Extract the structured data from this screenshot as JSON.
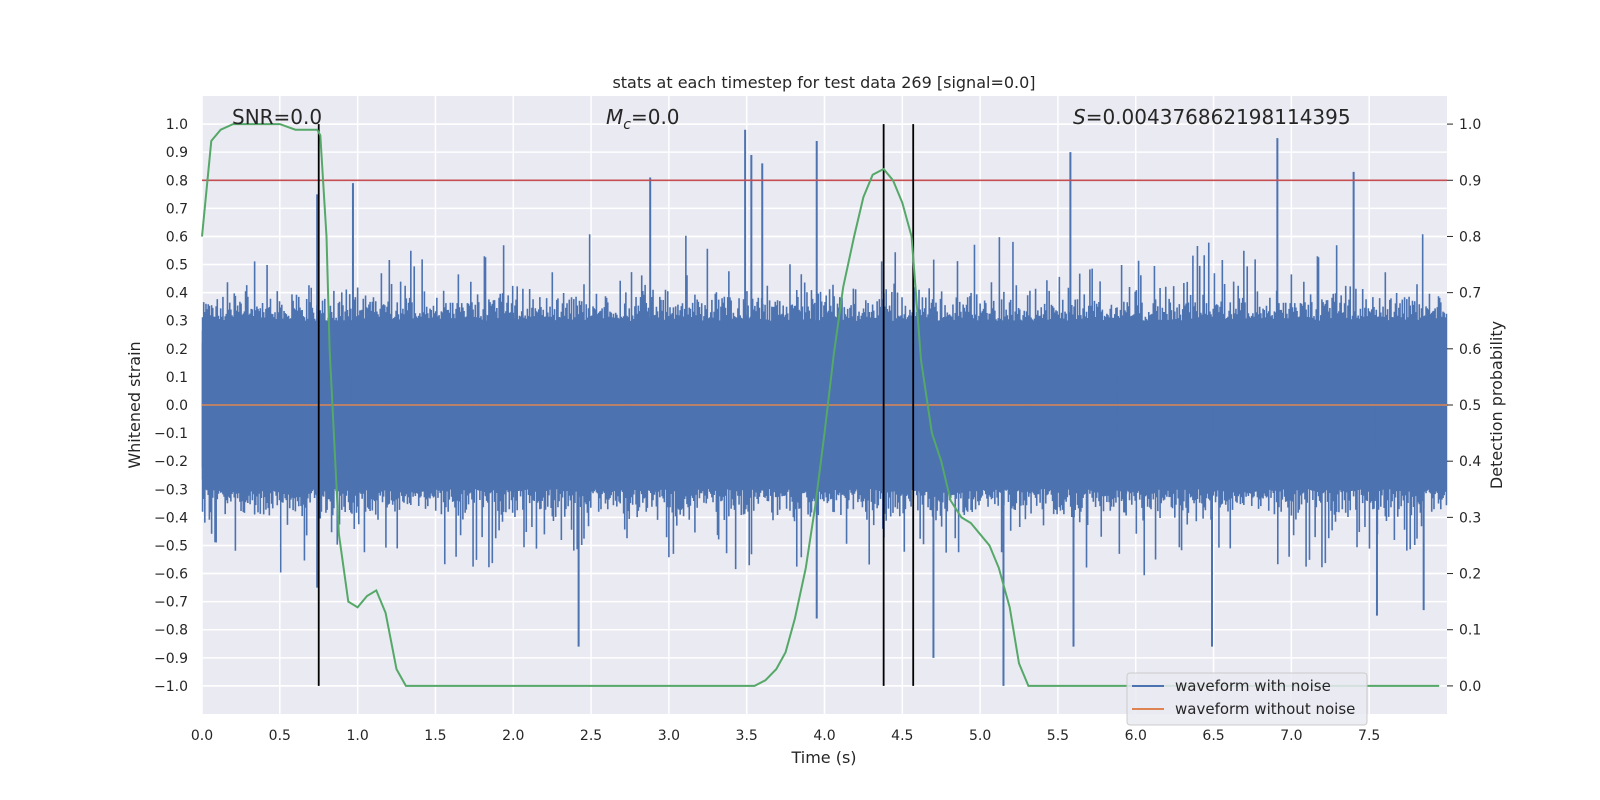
{
  "chart_data": {
    "type": "line",
    "title": "stats at each timestep for test data 269 [signal=0.0]",
    "xlabel": "Time (s)",
    "ylabel": "Whitened strain",
    "y2label": "Detection probability",
    "xlim": [
      0.0,
      8.0
    ],
    "ylim": [
      -1.1,
      1.1
    ],
    "y2lim": [
      -0.05,
      1.05
    ],
    "x_ticks": [
      0.0,
      0.5,
      1.0,
      1.5,
      2.0,
      2.5,
      3.0,
      3.5,
      4.0,
      4.5,
      5.0,
      5.5,
      6.0,
      6.5,
      7.0,
      7.5
    ],
    "x_tick_labels": [
      "0.0",
      "0.5",
      "1.0",
      "1.5",
      "2.0",
      "2.5",
      "3.0",
      "3.5",
      "4.0",
      "4.5",
      "5.0",
      "5.5",
      "6.0",
      "6.5",
      "7.0",
      "7.5"
    ],
    "y_ticks": [
      1.0,
      0.9,
      0.8,
      0.7,
      0.6,
      0.5,
      0.4,
      0.3,
      0.2,
      0.1,
      0.0,
      -0.1,
      -0.2,
      -0.3,
      -0.4,
      -0.5,
      -0.6,
      -0.7,
      -0.8,
      -0.9,
      -1.0
    ],
    "y_tick_labels": [
      "1.0",
      "0.9",
      "0.8",
      "0.7",
      "0.6",
      "0.5",
      "0.4",
      "0.3",
      "0.2",
      "0.1",
      "0.0",
      "−0.1",
      "−0.2",
      "−0.3",
      "−0.4",
      "−0.5",
      "−0.6",
      "−0.7",
      "−0.8",
      "−0.9",
      "−1.0"
    ],
    "y2_ticks": [
      1.0,
      0.9,
      0.8,
      0.7,
      0.6,
      0.5,
      0.4,
      0.3,
      0.2,
      0.1,
      0.0
    ],
    "y2_tick_labels": [
      "1.0",
      "0.9",
      "0.8",
      "0.7",
      "0.6",
      "0.5",
      "0.4",
      "0.3",
      "0.2",
      "0.1",
      "0.0"
    ],
    "grid": true,
    "annotations": {
      "snr": "SNR=0.0",
      "mc_symbol": "M",
      "mc_sub": "c",
      "mc_value": "=0.0",
      "s_symbol": "S",
      "s_value": "=0.004376862198114395"
    },
    "series": [
      {
        "name": "waveform with noise",
        "color": "#4c72b0",
        "style": "noise band, typical amplitude about ±0.4, peaks up to ±1.0",
        "spikes_pos": [
          [
            0.74,
            0.75
          ],
          [
            0.97,
            0.79
          ],
          [
            2.88,
            0.81
          ],
          [
            3.49,
            0.98
          ],
          [
            3.53,
            0.89
          ],
          [
            3.6,
            0.86
          ],
          [
            3.95,
            0.94
          ],
          [
            5.58,
            0.9
          ],
          [
            6.91,
            0.95
          ],
          [
            7.4,
            0.83
          ]
        ],
        "spikes_neg": [
          [
            0.74,
            -0.65
          ],
          [
            2.42,
            -0.86
          ],
          [
            3.95,
            -0.76
          ],
          [
            4.7,
            -0.9
          ],
          [
            5.15,
            -1.0
          ],
          [
            5.6,
            -0.86
          ],
          [
            6.49,
            -0.86
          ],
          [
            7.55,
            -0.75
          ],
          [
            7.85,
            -0.73
          ]
        ]
      },
      {
        "name": "waveform without noise",
        "color": "#dd8452",
        "x": [
          0.0,
          8.0
        ],
        "y": [
          0.0,
          0.0
        ]
      },
      {
        "name": "detection probability",
        "color": "#55a868",
        "axis": "y2",
        "x": [
          0.0,
          0.06,
          0.12,
          0.2,
          0.3,
          0.4,
          0.5,
          0.6,
          0.7,
          0.74,
          0.76,
          0.8,
          0.82,
          0.88,
          0.94,
          1.0,
          1.06,
          1.12,
          1.18,
          1.25,
          1.31,
          1.38,
          1.5,
          2.0,
          2.5,
          3.0,
          3.5,
          3.55,
          3.62,
          3.69,
          3.75,
          3.81,
          3.88,
          3.94,
          4.0,
          4.06,
          4.12,
          4.19,
          4.25,
          4.31,
          4.38,
          4.44,
          4.5,
          4.56,
          4.62,
          4.69,
          4.75,
          4.81,
          4.88,
          4.94,
          5.0,
          5.06,
          5.12,
          5.19,
          5.25,
          5.31,
          5.38,
          5.5,
          6.0,
          6.5,
          7.0,
          7.5,
          7.95
        ],
        "y": [
          0.8,
          0.97,
          0.99,
          1.0,
          1.0,
          1.0,
          1.0,
          0.99,
          0.99,
          0.99,
          0.98,
          0.8,
          0.6,
          0.27,
          0.15,
          0.14,
          0.16,
          0.17,
          0.13,
          0.03,
          0.0,
          0.0,
          0.0,
          0.0,
          0.0,
          0.0,
          0.0,
          0.0,
          0.01,
          0.03,
          0.06,
          0.12,
          0.21,
          0.32,
          0.45,
          0.59,
          0.71,
          0.8,
          0.87,
          0.91,
          0.92,
          0.9,
          0.86,
          0.8,
          0.58,
          0.45,
          0.4,
          0.33,
          0.3,
          0.29,
          0.27,
          0.25,
          0.21,
          0.14,
          0.04,
          0.0,
          0.0,
          0.0,
          0.0,
          0.0,
          0.0,
          0.0,
          0.0
        ]
      }
    ],
    "hlines": [
      {
        "y2": 0.9,
        "color": "#c44e52"
      }
    ],
    "vlines": [
      {
        "x": 0.75
      },
      {
        "x": 4.38
      },
      {
        "x": 4.57
      }
    ],
    "legend": {
      "placement": "lower-right",
      "entries": [
        {
          "label": "waveform with noise",
          "color": "#4c72b0"
        },
        {
          "label": "waveform without noise",
          "color": "#dd8452"
        }
      ]
    }
  }
}
